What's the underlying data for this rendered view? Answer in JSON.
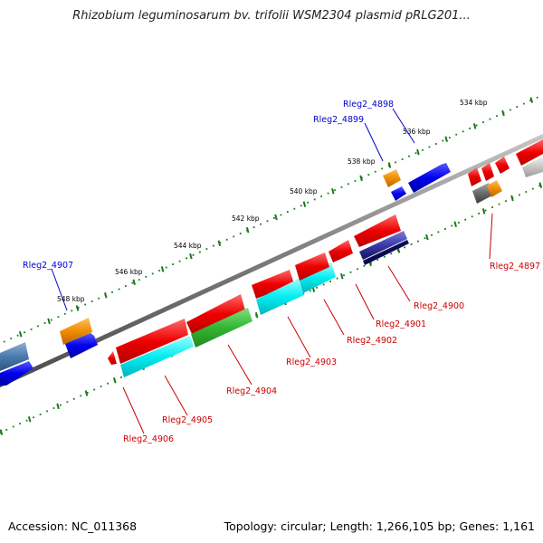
{
  "title": "Rhizobium leguminosarum bv. trifolii WSM2304 plasmid pRLG201...",
  "footer": {
    "accession": "Accession: NC_011368",
    "summary": "Topology: circular; Length: 1,266,105 bp; Genes: 1,161"
  },
  "colors": {
    "label_reverse": "#cc0000",
    "label_forward": "#0000cc",
    "tick": "#1a7a1a",
    "backbone": "#8c8c8c"
  },
  "tick_labels": [
    "534 kbp",
    "536 kbp",
    "538 kbp",
    "540 kbp",
    "542 kbp",
    "544 kbp",
    "546 kbp",
    "548 kbp"
  ],
  "gene_labels": {
    "forward": [
      "Rleg2_4898",
      "Rleg2_4899",
      "Rleg2_4907"
    ],
    "reverse": [
      "Rleg2_4897",
      "Rleg2_4900",
      "Rleg2_4901",
      "Rleg2_4902",
      "Rleg2_4903",
      "Rleg2_4904",
      "Rleg2_4905",
      "Rleg2_4906"
    ]
  }
}
